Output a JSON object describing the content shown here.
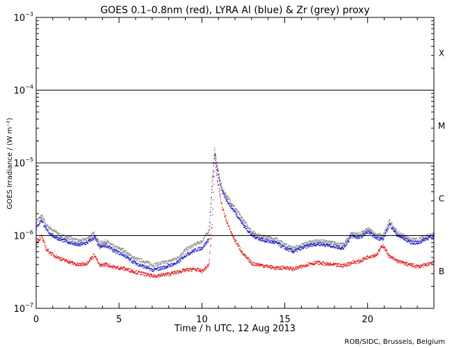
{
  "chart_data": {
    "type": "scatter",
    "title": "GOES 0.1–0.8nm (red), LYRA Al (blue) & Zr (grey) proxy",
    "xlabel": "Time / h UTC, 12 Aug 2013",
    "ylabel": "GOES Irradiance / (W m⁻²)",
    "credit": "ROB/SIDC, Brussels, Belgium",
    "xlim": [
      0,
      24
    ],
    "ylim": [
      1e-07,
      0.001
    ],
    "yscale": "log",
    "x_ticks": [
      0,
      5,
      10,
      15,
      20
    ],
    "x_tick_labels": [
      "0",
      "5",
      "10",
      "15",
      "20"
    ],
    "y_ticks": [
      {
        "value": 0.001,
        "mantissa": "10",
        "exponent": "−3"
      },
      {
        "value": 0.0001,
        "mantissa": "10",
        "exponent": "−4"
      },
      {
        "value": 1e-05,
        "mantissa": "10",
        "exponent": "−5"
      },
      {
        "value": 1e-06,
        "mantissa": "10",
        "exponent": "−6"
      },
      {
        "value": 1e-07,
        "mantissa": "10",
        "exponent": "−7"
      }
    ],
    "class_thresholds": [
      0.0001,
      1e-05,
      1e-06
    ],
    "flare_classes": [
      {
        "label": "X",
        "value": 0.00032
      },
      {
        "label": "M",
        "value": 3.2e-05
      },
      {
        "label": "C",
        "value": 3.2e-06
      },
      {
        "label": "B",
        "value": 3.2e-07
      }
    ],
    "series": [
      {
        "name": "LYRA Zr proxy",
        "color": "#8a8a8a",
        "x": [
          0,
          0.3,
          0.6,
          1,
          1.5,
          2,
          2.5,
          3,
          3.5,
          3.8,
          4.2,
          4.7,
          5.2,
          5.6,
          6,
          6.5,
          7,
          7.5,
          8,
          8.5,
          9,
          9.5,
          10,
          10.4,
          10.6,
          10.75,
          10.9,
          11.2,
          11.6,
          12,
          12.5,
          13,
          13.5,
          14,
          14.5,
          15,
          15.5,
          16,
          16.5,
          17,
          17.5,
          18,
          18.5,
          19,
          19.5,
          20,
          20.5,
          20.9,
          21.3,
          21.8,
          22.2,
          22.6,
          23,
          23.5,
          24
        ],
        "y": [
          1.6e-06,
          1.9e-06,
          1.4e-06,
          1.2e-06,
          1e-06,
          9.5e-07,
          8.5e-07,
          9e-07,
          1.1e-06,
          8e-07,
          8.5e-07,
          7e-07,
          6.5e-07,
          5.5e-07,
          4.8e-07,
          4.5e-07,
          4e-07,
          4.2e-07,
          4.5e-07,
          5e-07,
          6.5e-07,
          7.5e-07,
          8.5e-07,
          1.2e-06,
          6e-06,
          1.6e-05,
          9e-06,
          4.5e-06,
          3.2e-06,
          2.4e-06,
          1.6e-06,
          1.15e-06,
          1e-06,
          9.5e-07,
          9e-07,
          7.6e-07,
          6.8e-07,
          7.5e-07,
          8.2e-07,
          8.6e-07,
          8.3e-07,
          8e-07,
          7.5e-07,
          1.1e-06,
          1.05e-06,
          1.25e-06,
          1.05e-06,
          1e-06,
          1.6e-06,
          1.1e-06,
          1e-06,
          9e-07,
          8.8e-07,
          1e-06,
          1.1e-06
        ]
      },
      {
        "name": "LYRA Al proxy",
        "color": "#1a1ac8",
        "x": [
          0,
          0.3,
          0.6,
          1,
          1.5,
          2,
          2.5,
          3,
          3.5,
          3.8,
          4.2,
          4.7,
          5.2,
          5.6,
          6,
          6.5,
          7,
          7.5,
          8,
          8.5,
          9,
          9.5,
          10,
          10.4,
          10.6,
          10.75,
          10.9,
          11.2,
          11.6,
          12,
          12.5,
          13,
          13.5,
          14,
          14.5,
          15,
          15.5,
          16,
          16.5,
          17,
          17.5,
          18,
          18.5,
          19,
          19.5,
          20,
          20.5,
          20.9,
          21.3,
          21.8,
          22.2,
          22.6,
          23,
          23.5,
          24
        ],
        "y": [
          1.3e-06,
          1.7e-06,
          1.2e-06,
          1e-06,
          8.8e-07,
          8.2e-07,
          7.5e-07,
          8e-07,
          9.5e-07,
          7e-07,
          7.5e-07,
          6.2e-07,
          5.6e-07,
          4.8e-07,
          4.2e-07,
          3.8e-07,
          3.4e-07,
          3.6e-07,
          3.9e-07,
          4.3e-07,
          5.5e-07,
          6.3e-07,
          6.9e-07,
          9e-07,
          5e-06,
          1.4e-05,
          8e-06,
          4e-06,
          2.8e-06,
          2.1e-06,
          1.4e-06,
          1.02e-06,
          9e-07,
          8.5e-07,
          8e-07,
          6.8e-07,
          6.1e-07,
          6.8e-07,
          7.5e-07,
          7.8e-07,
          7.5e-07,
          7.2e-07,
          6.8e-07,
          1e-06,
          9.5e-07,
          1.15e-06,
          9.5e-07,
          9e-07,
          1.45e-06,
          1e-06,
          9.2e-07,
          8.2e-07,
          8e-07,
          9.2e-07,
          1e-06
        ]
      },
      {
        "name": "GOES 0.1-0.8nm",
        "color": "#e01818",
        "x": [
          0,
          0.3,
          0.6,
          1,
          1.5,
          2,
          2.5,
          3,
          3.5,
          3.8,
          4.2,
          4.7,
          5.2,
          5.6,
          6,
          6.5,
          7,
          7.5,
          8,
          8.5,
          9,
          9.5,
          10,
          10.4,
          10.6,
          10.75,
          10.9,
          11.2,
          11.6,
          12,
          12.5,
          13,
          13.5,
          14,
          14.5,
          15,
          15.5,
          16,
          16.5,
          17,
          17.5,
          18,
          18.5,
          19,
          19.5,
          20,
          20.5,
          20.9,
          21.3,
          21.8,
          22.2,
          22.6,
          23,
          23.5,
          24
        ],
        "y": [
          8e-07,
          1e-06,
          6.5e-07,
          5.5e-07,
          4.8e-07,
          4.4e-07,
          4e-07,
          4.2e-07,
          5.5e-07,
          3.9e-07,
          4.1e-07,
          3.7e-07,
          3.6e-07,
          3.4e-07,
          3.2e-07,
          3e-07,
          2.8e-07,
          2.9e-07,
          3e-07,
          3.2e-07,
          3.4e-07,
          3.5e-07,
          3.3e-07,
          4e-07,
          1.5e-06,
          1.3e-05,
          6e-06,
          2.5e-06,
          1.3e-06,
          8.5e-07,
          5.5e-07,
          4.2e-07,
          4e-07,
          3.8e-07,
          3.6e-07,
          3.7e-07,
          3.5e-07,
          3.8e-07,
          4.2e-07,
          4.3e-07,
          4.1e-07,
          4e-07,
          3.9e-07,
          4.3e-07,
          4.5e-07,
          5.2e-07,
          5.5e-07,
          7.5e-07,
          5.2e-07,
          4.5e-07,
          4.2e-07,
          4e-07,
          3.8e-07,
          4e-07,
          4.5e-07
        ]
      }
    ]
  }
}
